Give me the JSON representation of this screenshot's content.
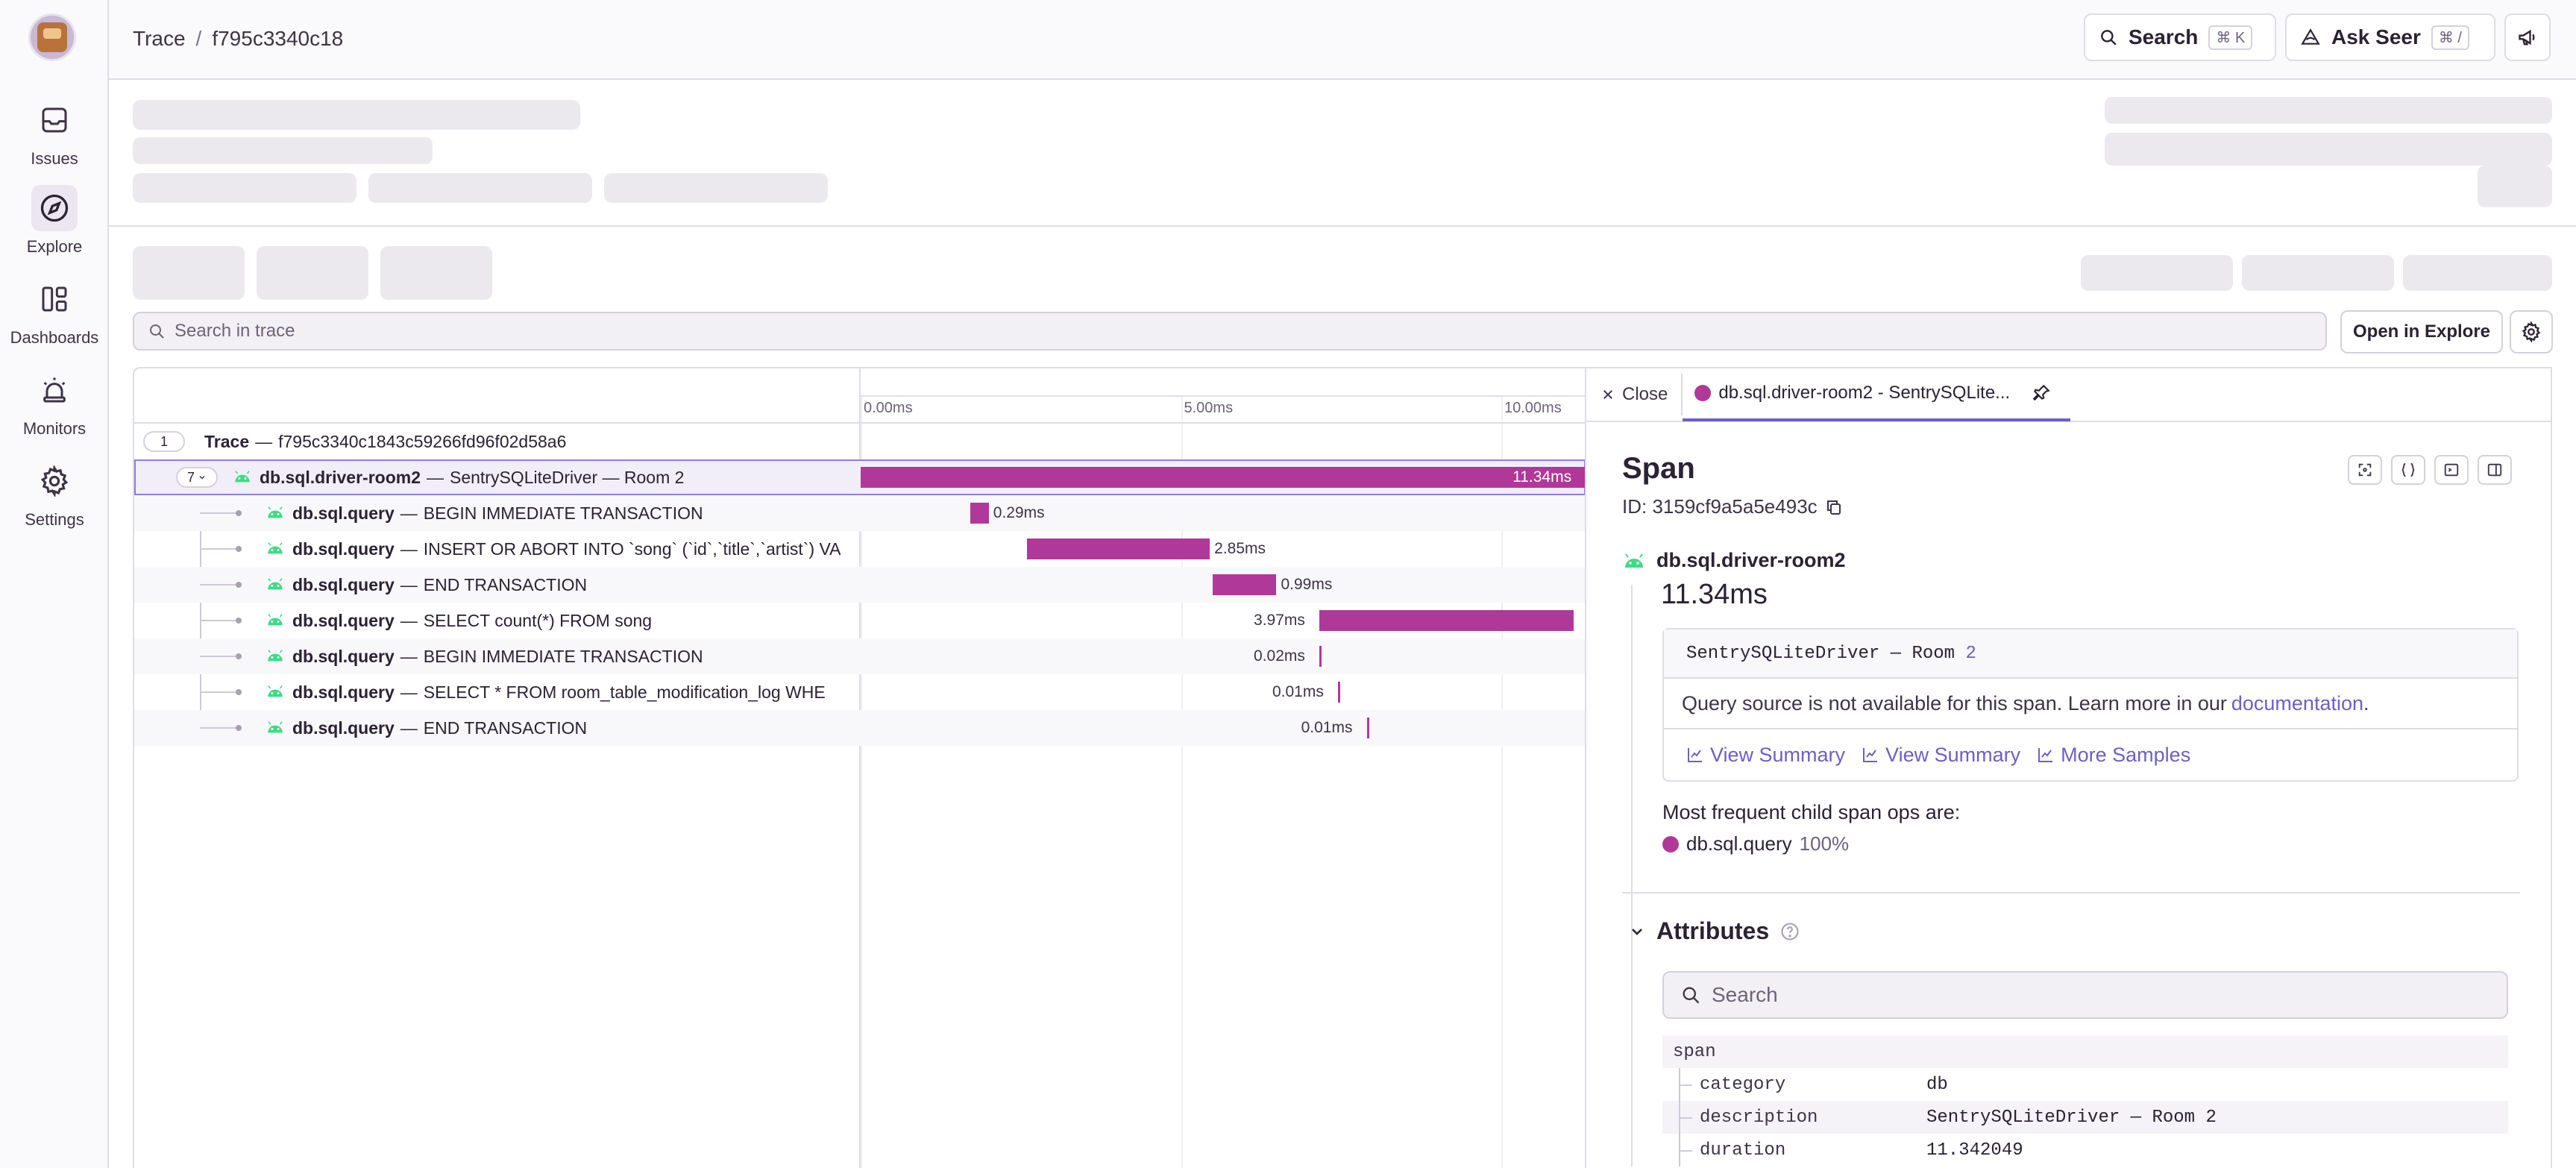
{
  "nav": {
    "items": [
      {
        "label": "Issues",
        "icon": "inbox-icon"
      },
      {
        "label": "Explore",
        "icon": "compass-icon"
      },
      {
        "label": "Dashboards",
        "icon": "dashboard-icon"
      },
      {
        "label": "Monitors",
        "icon": "siren-icon"
      },
      {
        "label": "Settings",
        "icon": "gear-icon"
      }
    ],
    "active": "Explore"
  },
  "header": {
    "breadcrumb": [
      "Trace",
      "f795c3340c18"
    ],
    "search_label": "Search",
    "search_kbd": "⌘ K",
    "seer_label": "Ask Seer",
    "seer_kbd": "⌘ /"
  },
  "trace_search": {
    "placeholder": "Search in trace",
    "open_in_explore": "Open in Explore"
  },
  "waterfall": {
    "ticks": [
      "0.00ms",
      "5.00ms",
      "10.00ms"
    ],
    "trace_row": {
      "count": "1",
      "label": "Trace",
      "id": "f795c3340c1843c59266fd96f02d58a6"
    },
    "root_span": {
      "count": "7",
      "op": "db.sql.driver-room2",
      "desc": "SentrySQLiteDriver — Room 2",
      "duration": "11.34ms",
      "start_ms": 0,
      "dur_ms": 11.34
    },
    "children": [
      {
        "op": "db.sql.query",
        "desc": "BEGIN IMMEDIATE TRANSACTION",
        "duration": "0.29ms",
        "start_ms": 1.71,
        "dur_ms": 0.29
      },
      {
        "op": "db.sql.query",
        "desc": "INSERT OR ABORT INTO `song` (`id`,`title`,`artist`) VA",
        "duration": "2.85ms",
        "start_ms": 2.6,
        "dur_ms": 2.85
      },
      {
        "op": "db.sql.query",
        "desc": "END TRANSACTION",
        "duration": "0.99ms",
        "start_ms": 5.5,
        "dur_ms": 0.99
      },
      {
        "op": "db.sql.query",
        "desc": "SELECT count(*) FROM song",
        "duration": "3.97ms",
        "start_ms": 7.16,
        "dur_ms": 3.97
      },
      {
        "op": "db.sql.query",
        "desc": "BEGIN IMMEDIATE TRANSACTION",
        "duration": "0.02ms",
        "start_ms": 7.16,
        "dur_ms": 0.02
      },
      {
        "op": "db.sql.query",
        "desc": "SELECT * FROM room_table_modification_log WHE",
        "duration": "0.01ms",
        "start_ms": 7.45,
        "dur_ms": 0.01
      },
      {
        "op": "db.sql.query",
        "desc": "END TRANSACTION",
        "duration": "0.01ms",
        "start_ms": 7.9,
        "dur_ms": 0.01
      }
    ]
  },
  "drawer": {
    "close_label": "Close",
    "tab_label": "db.sql.driver-room2 - SentrySQLite...",
    "title": "Span",
    "id_text": "ID: 3159cf9a5a5e493c",
    "span_name": "db.sql.driver-room2",
    "duration": "11.34ms",
    "query_code_prefix": "SentrySQLiteDriver — Room ",
    "query_code_num": "2",
    "query_note": "Query source is not available for this span. Learn more in our",
    "query_note_link": "documentation",
    "query_note_end": ".",
    "actions": [
      "View Summary",
      "View Summary",
      "More Samples"
    ],
    "freq_title": "Most frequent child span ops are:",
    "freq_op": "db.sql.query",
    "freq_pct": "100%",
    "attributes_title": "Attributes",
    "attr_search_placeholder": "Search",
    "attr_group": "span",
    "attributes": [
      {
        "key": "category",
        "value": "db"
      },
      {
        "key": "description",
        "value": "SentrySQLiteDriver — Room 2"
      },
      {
        "key": "duration",
        "value": "11.342049"
      }
    ]
  },
  "colors": {
    "accent": "#6c5fc7",
    "span_bar": "#b03899",
    "android_green": "#3ddc84"
  }
}
